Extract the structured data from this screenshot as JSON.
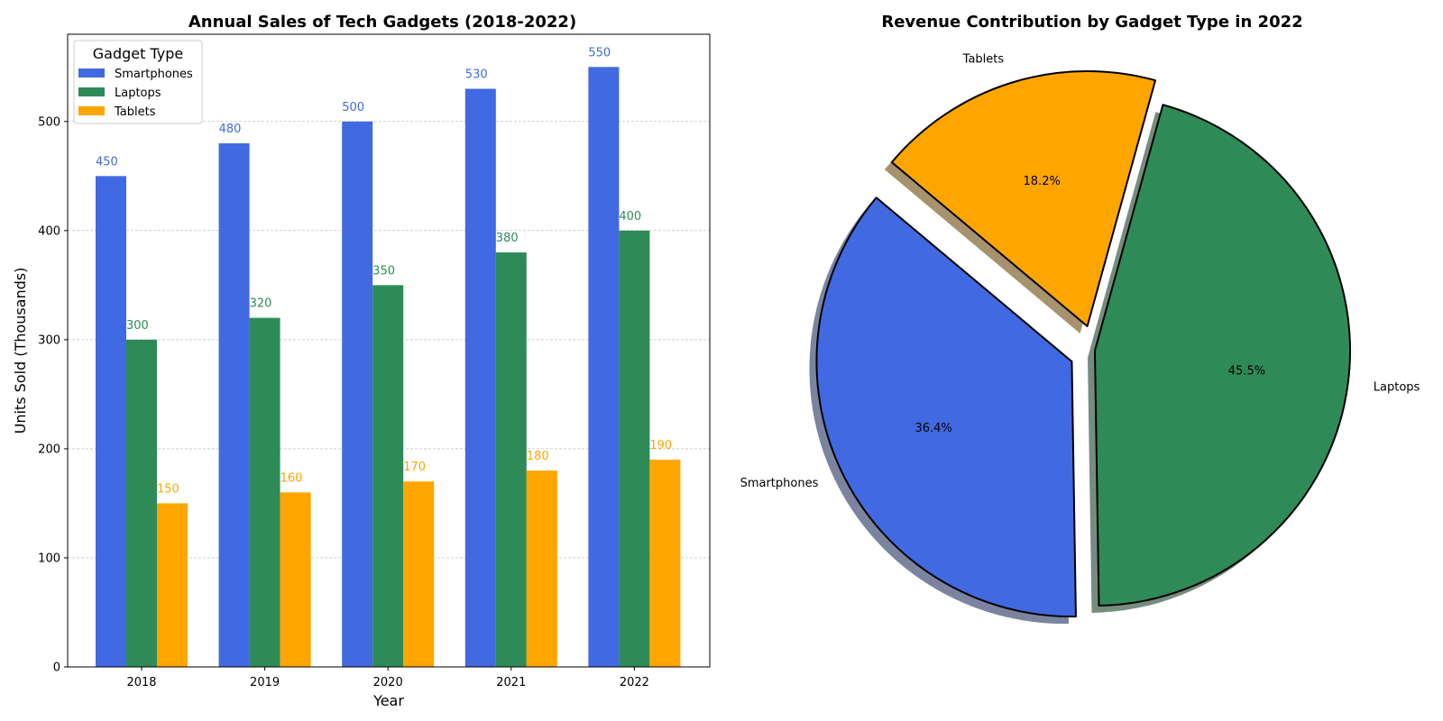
{
  "chart_data": [
    {
      "type": "bar",
      "title": "Annual Sales of Tech Gadgets (2018-2022)",
      "xlabel": "Year",
      "ylabel": "Units Sold (Thousands)",
      "categories": [
        "2018",
        "2019",
        "2020",
        "2021",
        "2022"
      ],
      "series": [
        {
          "name": "Smartphones",
          "values": [
            450,
            480,
            500,
            530,
            550
          ],
          "color": "#4169e1"
        },
        {
          "name": "Laptops",
          "values": [
            300,
            320,
            350,
            380,
            400
          ],
          "color": "#2e8b57"
        },
        {
          "name": "Tablets",
          "values": [
            150,
            160,
            170,
            180,
            190
          ],
          "color": "#ffa500"
        }
      ],
      "ylim": [
        0,
        580
      ],
      "yticks": [
        0,
        100,
        200,
        300,
        400,
        500
      ],
      "grid": "y-dashed",
      "legend": {
        "title": "Gadget Type",
        "placement": "top-left"
      },
      "data_labels": true
    },
    {
      "type": "pie",
      "title": "Revenue Contribution by Gadget Type in 2022",
      "slices": [
        {
          "label": "Smartphones",
          "value": 36.4,
          "pct_label": "36.4%",
          "color": "#4169e1",
          "exploded": true
        },
        {
          "label": "Laptops",
          "value": 45.5,
          "pct_label": "45.5%",
          "color": "#2e8b57",
          "exploded": false
        },
        {
          "label": "Tablets",
          "value": 18.2,
          "pct_label": "18.2%",
          "color": "#ffa500",
          "exploded": true
        }
      ],
      "start_angle_deg": 140,
      "shadow": true,
      "edge_color": "#000000"
    }
  ]
}
